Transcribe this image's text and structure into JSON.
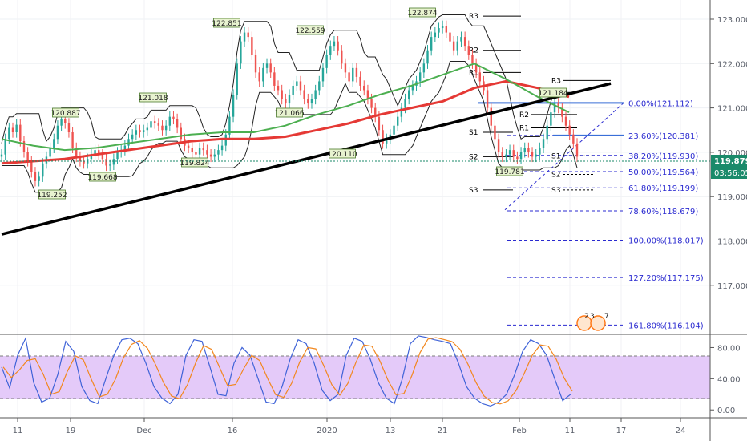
{
  "colors": {
    "up": "#26a69a",
    "down": "#ef5350",
    "fib": "#2a2ad0",
    "ma_red": "#e53935",
    "ma_green": "#4caf50",
    "trend": "#000000",
    "rsi_band": "#e1c4f8",
    "price_tag": "#1a8a6a",
    "price_line": "#1a8a6a"
  },
  "chart_data": [
    {
      "type": "candlestick",
      "title": "",
      "price_axis_ticks": [
        "123.000",
        "122.000",
        "121.000",
        "120.000",
        "119.000",
        "118.000",
        "117.000"
      ],
      "time_axis_ticks": [
        "11",
        "19",
        "Dec",
        "16",
        "2020",
        "13",
        "21",
        "Feb",
        "11",
        "17",
        "24"
      ],
      "ylim": [
        115.9,
        123.3
      ],
      "last_price": "119.879",
      "countdown": "03:56:05",
      "swing_labels": [
        {
          "text": "119.252",
          "x": 10,
          "y": 119.252
        },
        {
          "text": "120.887",
          "x": 18,
          "y": 120.887
        },
        {
          "text": "119.668",
          "x": 31,
          "y": 119.668
        },
        {
          "text": "121.018",
          "x": 46,
          "y": 121.018
        },
        {
          "text": "119.824",
          "x": 60,
          "y": 119.824
        },
        {
          "text": "122.851",
          "x": 69,
          "y": 122.851
        },
        {
          "text": "122.559",
          "x": 94,
          "y": 122.559
        },
        {
          "text": "121.066",
          "x": 89,
          "y": 121.066
        },
        {
          "text": "120.110",
          "x": 107,
          "y": 120.11
        },
        {
          "text": "122.874",
          "x": 133,
          "y": 122.874
        },
        {
          "text": "119.781",
          "x": 165,
          "y": 119.781
        },
        {
          "text": "121.184",
          "x": 178,
          "y": 121.184
        }
      ],
      "close_series": [
        119.95,
        120.3,
        120.55,
        120.45,
        120.62,
        120.25,
        120.0,
        119.8,
        119.55,
        119.35,
        119.45,
        119.75,
        119.9,
        120.1,
        120.3,
        120.6,
        120.75,
        120.65,
        120.45,
        120.1,
        119.9,
        119.8,
        119.75,
        119.85,
        119.95,
        120.05,
        119.95,
        119.85,
        119.7,
        119.72,
        119.85,
        120.0,
        120.05,
        120.15,
        120.3,
        120.4,
        120.5,
        120.45,
        120.5,
        120.55,
        120.7,
        120.65,
        120.6,
        120.5,
        120.6,
        120.8,
        120.75,
        120.55,
        120.3,
        120.15,
        120.1,
        120.0,
        119.95,
        120.1,
        120.05,
        119.95,
        119.9,
        119.95,
        120.05,
        120.15,
        120.4,
        120.8,
        121.3,
        122.0,
        122.5,
        122.7,
        122.6,
        122.2,
        121.8,
        121.6,
        121.9,
        122.0,
        121.8,
        121.5,
        121.4,
        121.2,
        121.1,
        121.3,
        121.5,
        121.6,
        121.4,
        121.2,
        121.1,
        121.2,
        121.4,
        121.6,
        121.9,
        122.2,
        122.4,
        122.5,
        122.3,
        122.0,
        121.8,
        121.6,
        121.9,
        121.7,
        121.5,
        121.4,
        121.2,
        121.0,
        120.8,
        120.5,
        120.2,
        120.3,
        120.4,
        120.6,
        120.8,
        121.0,
        121.2,
        121.4,
        121.5,
        121.6,
        121.8,
        122.0,
        122.3,
        122.6,
        122.7,
        122.8,
        122.85,
        122.7,
        122.5,
        122.3,
        122.5,
        122.6,
        122.4,
        122.2,
        122.0,
        121.8,
        121.6,
        121.4,
        121.0,
        120.6,
        120.3,
        120.0,
        119.9,
        119.95,
        120.05,
        119.9,
        119.85,
        120.0,
        120.1,
        120.0,
        119.9,
        119.95,
        120.1,
        120.3,
        120.6,
        120.9,
        121.1,
        121.0,
        120.8,
        120.6,
        120.4,
        120.2,
        119.9
      ],
      "moving_averages": [
        {
          "color": "red",
          "values": [
            119.75,
            119.8,
            119.85,
            119.95,
            120.05,
            120.15,
            120.25,
            120.3,
            120.3,
            120.35,
            120.5,
            120.65,
            120.85,
            121.0,
            121.15,
            121.45,
            121.6,
            121.45,
            121.25
          ]
        },
        {
          "color": "green",
          "values": [
            120.3,
            120.15,
            120.05,
            120.1,
            120.2,
            120.3,
            120.4,
            120.45,
            120.45,
            120.6,
            120.85,
            121.05,
            121.3,
            121.5,
            121.75,
            122.0,
            121.65,
            121.25,
            120.9
          ]
        }
      ],
      "trendline": {
        "from": {
          "x": 0,
          "y": 118.15
        },
        "to": {
          "x": 200,
          "y": 121.55
        }
      },
      "pivot_levels": [
        {
          "text": "R3",
          "y": 123.07
        },
        {
          "text": "R2",
          "y": 122.3
        },
        {
          "text": "R1",
          "y": 121.8
        },
        {
          "text": "S1",
          "y": 120.45
        },
        {
          "text": "S2",
          "y": 119.9
        },
        {
          "text": "S3",
          "y": 119.15
        }
      ],
      "recent_pivots": [
        "R3",
        "R2",
        "R1",
        "S1",
        "S2",
        "S3"
      ],
      "fib_levels": [
        {
          "text": "0.00%(121.112)",
          "value": 121.112
        },
        {
          "text": "23.60%(120.381)",
          "value": 120.381
        },
        {
          "text": "38.20%(119.930)",
          "value": 119.93
        },
        {
          "text": "50.00%(119.564)",
          "value": 119.564
        },
        {
          "text": "61.80%(119.199)",
          "value": 119.199
        },
        {
          "text": "78.60%(118.679)",
          "value": 118.679
        },
        {
          "text": "100.00%(118.017)",
          "value": 118.017
        },
        {
          "text": "127.20%(117.175)",
          "value": 117.175
        },
        {
          "text": "161.80%(116.104)",
          "value": 116.104
        }
      ],
      "event_badges": [
        "2",
        "3",
        "7"
      ]
    },
    {
      "type": "line",
      "title": "",
      "yticks": [
        "80.00",
        "40.00",
        "0.00"
      ],
      "ylim": [
        -8,
        100
      ],
      "band": [
        20,
        80
      ],
      "series_k": [
        55,
        28,
        70,
        92,
        35,
        10,
        15,
        45,
        88,
        75,
        30,
        12,
        8,
        40,
        70,
        90,
        92,
        85,
        60,
        30,
        15,
        8,
        20,
        70,
        90,
        88,
        55,
        20,
        18,
        60,
        80,
        70,
        40,
        10,
        8,
        30,
        65,
        90,
        85,
        60,
        25,
        12,
        20,
        70,
        92,
        88,
        65,
        35,
        15,
        8,
        40,
        85,
        95,
        93,
        90,
        88,
        85,
        60,
        30,
        15,
        8,
        5,
        10,
        20,
        45,
        75,
        90,
        85,
        70,
        40,
        12,
        20
      ]
    }
  ]
}
